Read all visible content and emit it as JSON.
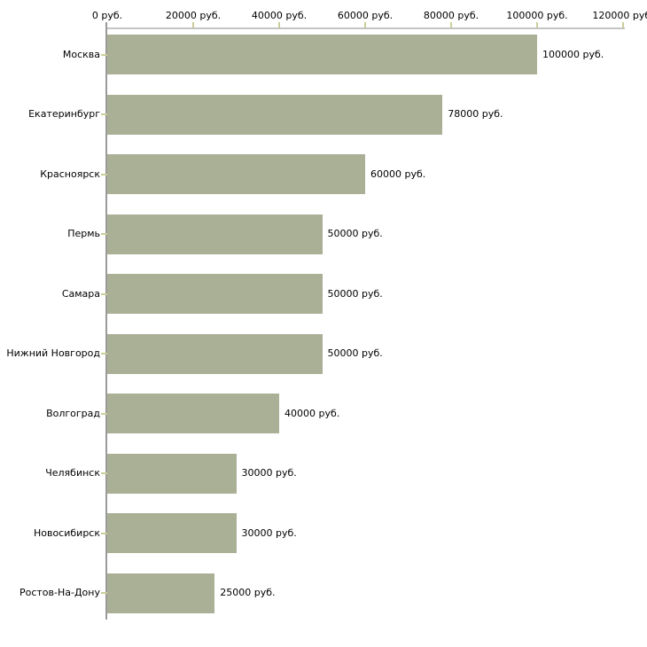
{
  "chart_data": {
    "type": "bar",
    "orientation": "horizontal",
    "title": "",
    "xlabel": "",
    "ylabel": "",
    "xlim": [
      0,
      120000
    ],
    "grid": false,
    "legend": false,
    "categories": [
      "Москва",
      "Екатеринбург",
      "Красноярск",
      "Пермь",
      "Самара",
      "Нижний Новгород",
      "Волгоград",
      "Челябинск",
      "Новосибирск",
      "Ростов-На-Дону"
    ],
    "values": [
      100000,
      78000,
      60000,
      50000,
      50000,
      50000,
      40000,
      30000,
      30000,
      25000
    ],
    "value_labels": [
      "100000 руб.",
      "78000 руб.",
      "60000 руб.",
      "50000 руб.",
      "50000 руб.",
      "50000 руб.",
      "40000 руб.",
      "30000 руб.",
      "30000 руб.",
      "25000 руб."
    ],
    "x_tick_values": [
      0,
      20000,
      40000,
      60000,
      80000,
      100000,
      120000
    ],
    "x_tick_labels": [
      "0 руб.",
      "20000 руб.",
      "40000 руб.",
      "60000 руб.",
      "80000 руб.",
      "100000 руб.",
      "120000 руб."
    ],
    "colors": {
      "bar": "#AAB096",
      "x_axis_line": "#C4C4C4",
      "y_axis_line": "#9A9A9A",
      "tick": "#CCCC99",
      "text": "#000000",
      "background": "#FFFFFF"
    }
  }
}
